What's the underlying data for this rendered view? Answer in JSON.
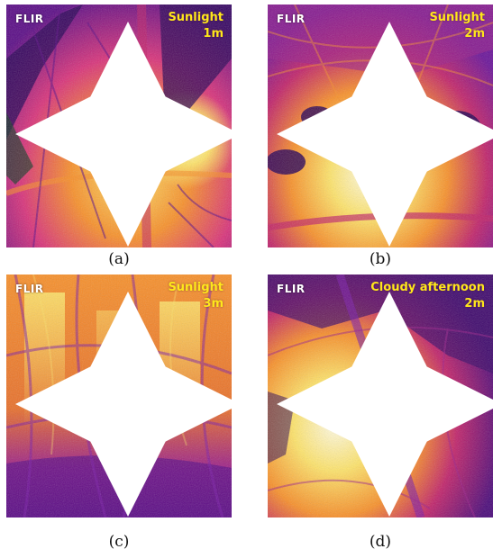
{
  "brand": "FLIR",
  "palette": {
    "cold": "#2b0457",
    "cool": "#7a1aa8",
    "mid": "#d8327a",
    "warm": "#f7902a",
    "hot": "#fde36a",
    "hottest": "#fffbe6",
    "overlay_text": "#ffe81a"
  },
  "panels": [
    {
      "condition": "Sunlight",
      "distance": "1m",
      "caption": "(a)"
    },
    {
      "condition": "Sunlight",
      "distance": "2m",
      "caption": "(b)"
    },
    {
      "condition": "Sunlight",
      "distance": "3m",
      "caption": "(c)"
    },
    {
      "condition": "Cloudy afternoon",
      "distance": "2m",
      "caption": "(d)"
    }
  ]
}
